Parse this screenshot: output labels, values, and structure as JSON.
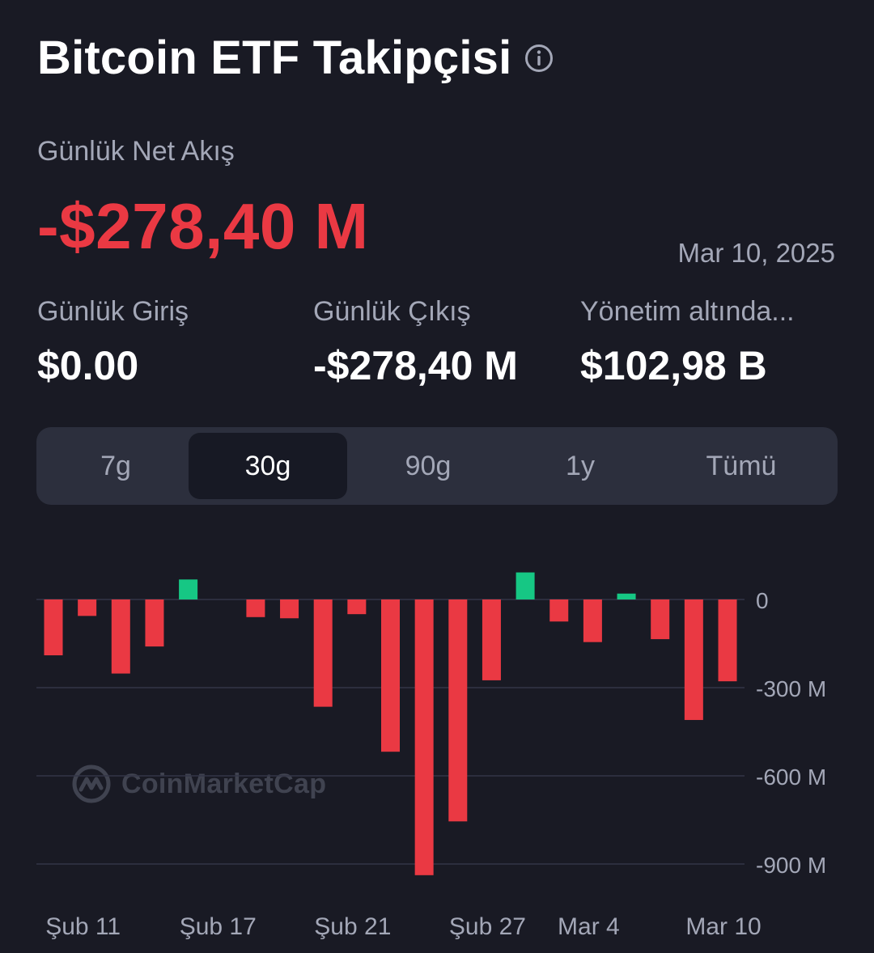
{
  "header": {
    "title": "Bitcoin ETF Takipçisi",
    "info_icon": "info-icon"
  },
  "summary": {
    "net_label": "Günlük Net Akış",
    "net_value": "-$278,40 M",
    "date": "Mar 10, 2025",
    "stats": [
      {
        "label": "Günlük Giriş",
        "value": "$0.00"
      },
      {
        "label": "Günlük Çıkış",
        "value": "-$278,40 M"
      },
      {
        "label": "Yönetim altında...",
        "value": "$102,98 B"
      }
    ]
  },
  "tabs": {
    "items": [
      "7g",
      "30g",
      "90g",
      "1y",
      "Tümü"
    ],
    "selected": "30g"
  },
  "watermark": {
    "text": "CoinMarketCap"
  },
  "colors": {
    "negative": "#ea3943",
    "positive": "#16c784",
    "background": "#191a24"
  },
  "chart_data": {
    "type": "bar",
    "categories": [
      "Şub 10",
      "Şub 11",
      "Şub 12",
      "Şub 13",
      "Şub 14",
      "Şub 17",
      "Şub 18",
      "Şub 19",
      "Şub 20",
      "Şub 21",
      "Şub 24",
      "Şub 25",
      "Şub 26",
      "Şub 27",
      "Şub 28",
      "Mar 3",
      "Mar 4",
      "Mar 5",
      "Mar 6",
      "Mar 7",
      "Mar 10"
    ],
    "values": [
      -190,
      -56,
      -252,
      -160,
      68,
      0,
      -60,
      -64,
      -365,
      -50,
      -518,
      -938,
      -755,
      -275,
      92,
      -75,
      -145,
      20,
      -135,
      -410,
      -278.4
    ],
    "y_ticks": [
      0,
      -300,
      -600,
      -900
    ],
    "y_tick_labels": [
      "0",
      "-300 M",
      "-600 M",
      "-900 M"
    ],
    "x_tick_labels": [
      "Şub 11",
      "Şub 17",
      "Şub 21",
      "Şub 27",
      "Mar 4",
      "Mar 10"
    ],
    "ylim": [
      -960,
      120
    ],
    "grid": true,
    "title": "",
    "xlabel": "",
    "ylabel": ""
  }
}
